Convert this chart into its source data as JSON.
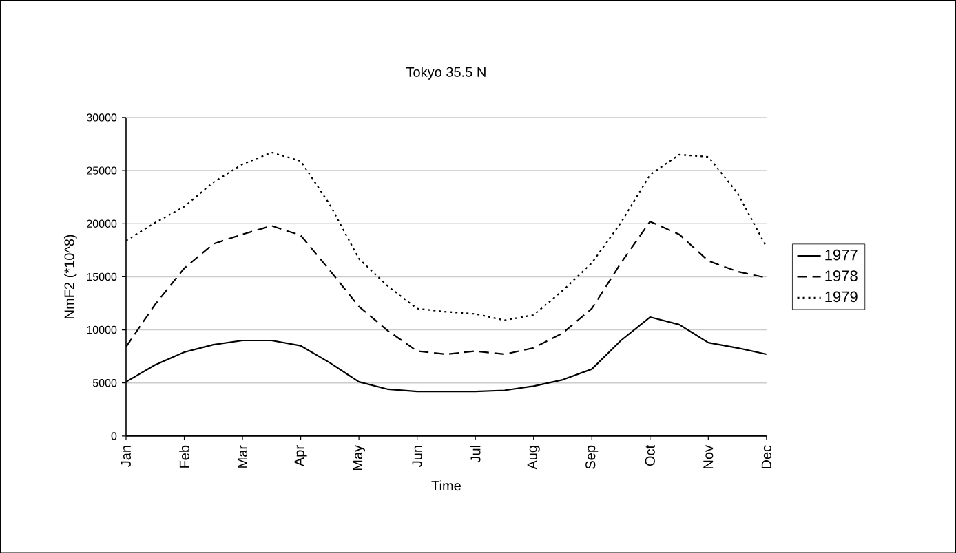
{
  "chart_data": {
    "type": "line",
    "title": "Tokyo 35.5 N",
    "xlabel": "Time",
    "ylabel": "NmF2 (*10^8)",
    "categories": [
      "Jan",
      null,
      "Feb",
      null,
      "Mar",
      null,
      "Apr",
      null,
      "May",
      null,
      "Jun",
      null,
      "Jul",
      null,
      "Aug",
      null,
      "Sep",
      null,
      "Oct",
      null,
      "Nov",
      null,
      "Dec"
    ],
    "ylim": [
      0,
      30000
    ],
    "yticks": [
      0,
      5000,
      10000,
      15000,
      20000,
      25000,
      30000
    ],
    "grid": "y",
    "legend": "right",
    "marker": "none",
    "series": [
      {
        "name": "1977",
        "color": "#000000",
        "line_style": "solid",
        "values": [
          5100,
          6700,
          7900,
          8600,
          9000,
          9000,
          8500,
          6900,
          5100,
          4400,
          4200,
          4200,
          4200,
          4300,
          4700,
          5300,
          6300,
          9000,
          11200,
          10500,
          8800,
          8300,
          7700
        ]
      },
      {
        "name": "1978",
        "color": "#000000",
        "line_style": "dashed",
        "values": [
          8400,
          12400,
          15800,
          18100,
          19000,
          19800,
          18900,
          15600,
          12200,
          9900,
          8000,
          7700,
          8000,
          7700,
          8300,
          9700,
          12000,
          16300,
          20200,
          19000,
          16500,
          15500,
          14900
        ]
      },
      {
        "name": "1979",
        "color": "#000000",
        "line_style": "dotted",
        "values": [
          18400,
          20100,
          21600,
          23900,
          25600,
          26700,
          25900,
          21800,
          16700,
          14100,
          12000,
          11700,
          11500,
          10900,
          11400,
          13700,
          16300,
          20100,
          24600,
          26500,
          26300,
          22900,
          17800
        ]
      }
    ]
  }
}
